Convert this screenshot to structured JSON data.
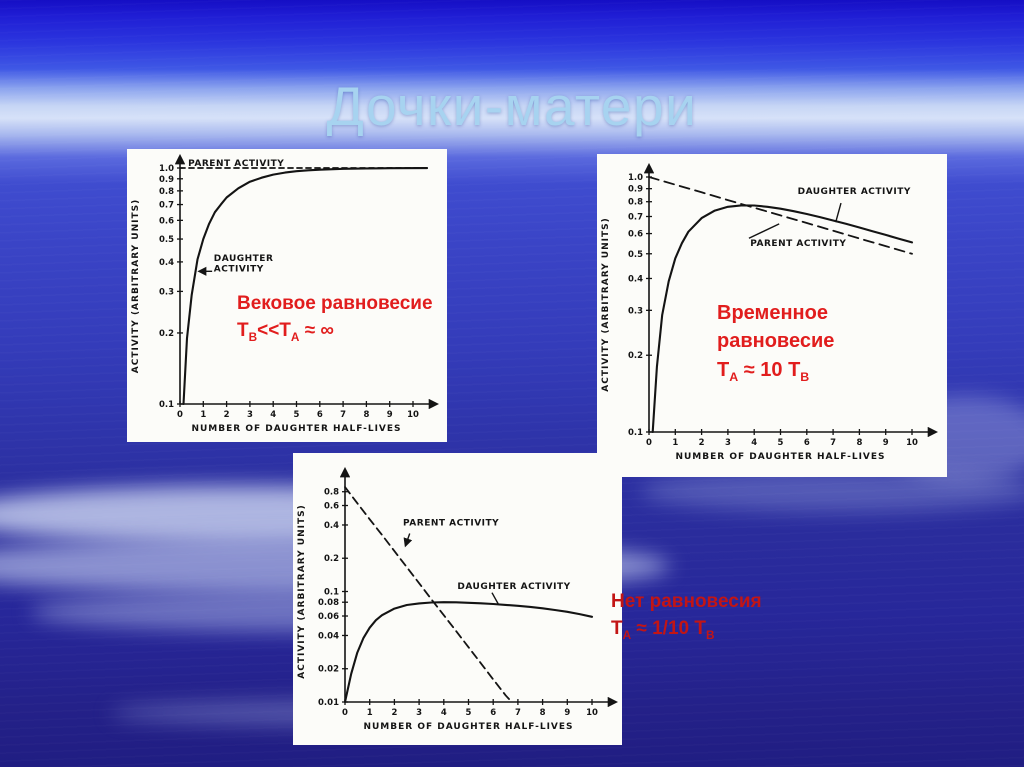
{
  "slide": {
    "title": "Дочки-матери",
    "title_color": "#a7d3f0",
    "background": {
      "sky_top": "#1a13c8",
      "light_band": "#d6e1f8",
      "sky_mid": "#3a43c4",
      "sky_bottom": "#201d82",
      "cloud": "#cdd7f2"
    }
  },
  "annotations": [
    {
      "id": "secular-equilibrium",
      "color": "#e11d1d",
      "lines": [
        "Вековое равновесие",
        "T_{B}<<T_{A} ≈ ∞"
      ]
    },
    {
      "id": "transient-equilibrium",
      "color": "#e11d1d",
      "lines": [
        "Временное",
        "равновесие",
        "T_{A} ≈ 10 T_{B}"
      ]
    },
    {
      "id": "no-equilibrium",
      "color": "#c21515",
      "lines": [
        "Нет равновесия",
        "T_{A} ≈ 1/10 T_{B}"
      ]
    }
  ],
  "chart_data": [
    {
      "id": "secular-equilibrium",
      "type": "line",
      "xlabel": "NUMBER OF DAUGHTER HALF-LIVES",
      "ylabel": "ACTIVITY (ARBITRARY UNITS)",
      "x_ticks": [
        0,
        1,
        2,
        3,
        4,
        5,
        6,
        7,
        8,
        9,
        10
      ],
      "y_ticks": [
        [
          1.0,
          "1.0"
        ],
        [
          0.9,
          "0.9"
        ],
        [
          0.8,
          "0.8"
        ],
        [
          0.7,
          "0.7"
        ],
        [
          0.6,
          "0.6"
        ],
        [
          0.5,
          "0.5"
        ],
        [
          0.4,
          "0.4"
        ],
        [
          0.3,
          "0.3"
        ],
        [
          0.2,
          "0.2"
        ],
        [
          0.1,
          "0.1"
        ]
      ],
      "xlim": [
        0,
        10
      ],
      "ylim": [
        0.1,
        1.0
      ],
      "y_scale": "log",
      "grid": false,
      "series": [
        {
          "name": "PARENT ACTIVITY",
          "style": "dashed",
          "dash": "5,4",
          "points": [
            [
              0,
              1.0
            ],
            [
              10.6,
              1.0
            ]
          ]
        },
        {
          "name": "DAUGHTER ACTIVITY",
          "style": "solid",
          "points": [
            [
              0.15,
              0.1
            ],
            [
              0.3,
              0.19
            ],
            [
              0.5,
              0.29
            ],
            [
              0.75,
              0.41
            ],
            [
              1,
              0.5
            ],
            [
              1.25,
              0.58
            ],
            [
              1.5,
              0.65
            ],
            [
              1.75,
              0.7
            ],
            [
              2,
              0.75
            ],
            [
              2.5,
              0.82
            ],
            [
              3,
              0.875
            ],
            [
              3.5,
              0.91
            ],
            [
              4,
              0.938
            ],
            [
              4.5,
              0.956
            ],
            [
              5,
              0.969
            ],
            [
              5.5,
              0.978
            ],
            [
              6,
              0.984
            ],
            [
              7,
              0.992
            ],
            [
              8,
              0.996
            ],
            [
              9,
              0.998
            ],
            [
              10.6,
              0.999
            ]
          ]
        }
      ],
      "labels": [
        {
          "lines": [
            "PARENT ACTIVITY"
          ],
          "x": 0.35,
          "y": 1.0,
          "dy": -2,
          "anchor": "start"
        },
        {
          "lines": [
            "DAUGHTER",
            "ACTIVITY"
          ],
          "x": 1.45,
          "y": 0.415,
          "dy": 3,
          "anchor": "start",
          "leader": {
            "from": [
              1.38,
              0.365
            ],
            "to": [
              0.82,
              0.365
            ],
            "arrow": true
          }
        }
      ]
    },
    {
      "id": "transient-equilibrium",
      "type": "line",
      "xlabel": "NUMBER OF DAUGHTER HALF-LIVES",
      "ylabel": "ACTIVITY (ARBITRARY UNITS)",
      "x_ticks": [
        0,
        1,
        2,
        3,
        4,
        5,
        6,
        7,
        8,
        9,
        10
      ],
      "y_ticks": [
        [
          1.0,
          "1.0"
        ],
        [
          0.9,
          "0.9"
        ],
        [
          0.8,
          "0.8"
        ],
        [
          0.7,
          "0.7"
        ],
        [
          0.6,
          "0.6"
        ],
        [
          0.5,
          "0.5"
        ],
        [
          0.4,
          "0.4"
        ],
        [
          0.3,
          "0.3"
        ],
        [
          0.2,
          "0.2"
        ],
        [
          0.1,
          "0.1"
        ]
      ],
      "xlim": [
        0,
        10
      ],
      "ylim": [
        0.1,
        1.0
      ],
      "y_scale": "log",
      "grid": false,
      "series": [
        {
          "name": "PARENT ACTIVITY",
          "style": "dashed",
          "dash": "10,6",
          "points": [
            [
              0,
              1.0
            ],
            [
              1,
              0.933
            ],
            [
              2,
              0.871
            ],
            [
              3,
              0.812
            ],
            [
              4,
              0.758
            ],
            [
              5,
              0.707
            ],
            [
              6,
              0.66
            ],
            [
              7,
              0.616
            ],
            [
              8,
              0.574
            ],
            [
              9,
              0.536
            ],
            [
              10,
              0.5
            ]
          ]
        },
        {
          "name": "DAUGHTER ACTIVITY",
          "style": "solid",
          "points": [
            [
              0.14,
              0.1
            ],
            [
              0.3,
              0.18
            ],
            [
              0.5,
              0.288
            ],
            [
              0.75,
              0.39
            ],
            [
              1,
              0.48
            ],
            [
              1.25,
              0.55
            ],
            [
              1.5,
              0.61
            ],
            [
              2,
              0.69
            ],
            [
              2.5,
              0.738
            ],
            [
              3,
              0.764
            ],
            [
              3.5,
              0.774
            ],
            [
              4,
              0.773
            ],
            [
              4.5,
              0.764
            ],
            [
              5,
              0.751
            ],
            [
              5.5,
              0.734
            ],
            [
              6,
              0.716
            ],
            [
              6.5,
              0.696
            ],
            [
              7,
              0.675
            ],
            [
              7.5,
              0.655
            ],
            [
              8,
              0.634
            ],
            [
              8.5,
              0.613
            ],
            [
              9,
              0.593
            ],
            [
              9.5,
              0.573
            ],
            [
              10,
              0.554
            ]
          ]
        }
      ],
      "labels": [
        {
          "lines": [
            "DAUGHTER ACTIVITY"
          ],
          "x": 5.65,
          "y": 0.89,
          "dy": 4,
          "anchor": "start",
          "leader": {
            "from": [
              7.3,
              0.79
            ],
            "to": [
              7.1,
              0.665
            ],
            "arrow": false
          }
        },
        {
          "lines": [
            "PARENT ACTIVITY"
          ],
          "x": 3.85,
          "y": 0.545,
          "dy": 2,
          "anchor": "start",
          "leader": {
            "from": [
              3.8,
              0.575
            ],
            "to": [
              4.95,
              0.655
            ],
            "arrow": false
          }
        }
      ]
    },
    {
      "id": "no-equilibrium",
      "type": "line",
      "xlabel": "NUMBER OF DAUGHTER HALF-LIVES",
      "ylabel": "ACTIVITY (ARBITRARY UNITS)",
      "x_ticks": [
        0,
        1,
        2,
        3,
        4,
        5,
        6,
        7,
        8,
        9,
        10
      ],
      "y_ticks": [
        [
          0.8,
          "0.8"
        ],
        [
          0.6,
          "0.6"
        ],
        [
          0.4,
          "0.4"
        ],
        [
          0.2,
          "0.2"
        ],
        [
          0.1,
          "0.1"
        ],
        [
          0.08,
          "0.08"
        ],
        [
          0.06,
          "0.06"
        ],
        [
          0.04,
          "0.04"
        ],
        [
          0.02,
          "0.02"
        ],
        [
          0.01,
          "0.01"
        ]
      ],
      "xlim": [
        0,
        10
      ],
      "ylim": [
        0.01,
        1.0
      ],
      "y_scale": "log",
      "grid": false,
      "series": [
        {
          "name": "PARENT ACTIVITY",
          "style": "dashed",
          "dash": "8,5",
          "points": [
            [
              0,
              0.88
            ],
            [
              0.5,
              0.63
            ],
            [
              1,
              0.45
            ],
            [
              1.5,
              0.325
            ],
            [
              2,
              0.232
            ],
            [
              2.5,
              0.166
            ],
            [
              3,
              0.119
            ],
            [
              3.5,
              0.085
            ],
            [
              4,
              0.061
            ],
            [
              4.5,
              0.0437
            ],
            [
              5,
              0.0313
            ],
            [
              5.5,
              0.0224
            ],
            [
              6,
              0.016
            ],
            [
              6.5,
              0.0115
            ],
            [
              6.75,
              0.01
            ]
          ]
        },
        {
          "name": "DAUGHTER ACTIVITY",
          "style": "solid",
          "points": [
            [
              0,
              0.01
            ],
            [
              0.25,
              0.018
            ],
            [
              0.5,
              0.028
            ],
            [
              0.75,
              0.038
            ],
            [
              1,
              0.047
            ],
            [
              1.25,
              0.055
            ],
            [
              1.5,
              0.061
            ],
            [
              2,
              0.07
            ],
            [
              2.5,
              0.0755
            ],
            [
              3,
              0.078
            ],
            [
              3.5,
              0.0795
            ],
            [
              4,
              0.08
            ],
            [
              4.5,
              0.0798
            ],
            [
              5,
              0.079
            ],
            [
              5.5,
              0.0782
            ],
            [
              6,
              0.077
            ],
            [
              6.5,
              0.0757
            ],
            [
              7,
              0.0742
            ],
            [
              7.5,
              0.0725
            ],
            [
              8,
              0.0705
            ],
            [
              8.5,
              0.068
            ],
            [
              9,
              0.0655
            ],
            [
              9.5,
              0.0625
            ],
            [
              10,
              0.059
            ]
          ]
        }
      ],
      "labels": [
        {
          "lines": [
            "PARENT ACTIVITY"
          ],
          "x": 2.35,
          "y": 0.43,
          "dy": 4,
          "anchor": "start",
          "leader": {
            "from": [
              2.62,
              0.335
            ],
            "to": [
              2.45,
              0.26
            ],
            "arrow": true
          }
        },
        {
          "lines": [
            "DAUGHTER ACTIVITY"
          ],
          "x": 4.55,
          "y": 0.108,
          "dy": 1,
          "anchor": "start",
          "leader": {
            "from": [
              5.95,
              0.0975
            ],
            "to": [
              6.2,
              0.0775
            ],
            "arrow": false
          }
        }
      ]
    }
  ]
}
